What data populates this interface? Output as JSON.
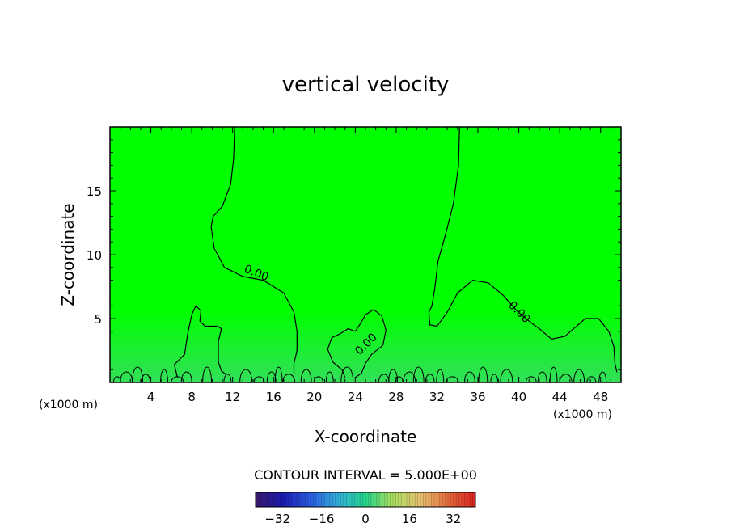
{
  "chart_data": {
    "type": "contour",
    "title": "vertical velocity",
    "xlabel": "X-coordinate",
    "ylabel": "Z-coordinate",
    "x_unit_left": "(x1000 m)",
    "x_unit_right": "(x1000 m)",
    "xlim": [
      0,
      50
    ],
    "ylim": [
      0,
      20
    ],
    "x_ticks": [
      4,
      8,
      12,
      16,
      20,
      24,
      28,
      32,
      36,
      40,
      44,
      48
    ],
    "y_ticks": [
      5,
      10,
      15
    ],
    "contour_interval_text": "CONTOUR INTERVAL = 5.000E+00",
    "contour_label": "0.00",
    "colorbar": {
      "range": [
        -40,
        40
      ],
      "ticks": [
        -32,
        -16,
        0,
        16,
        32
      ],
      "low_color": "#3b1a6b",
      "high_color": "#d92020"
    },
    "field_color": "#00ff00",
    "zero_contours": [
      {
        "name": "left-plume",
        "points": [
          [
            12.2,
            20
          ],
          [
            12.1,
            17.5
          ],
          [
            11.8,
            15.5
          ],
          [
            11,
            13.8
          ],
          [
            10.1,
            13
          ],
          [
            9.9,
            12.2
          ],
          [
            10.2,
            10.5
          ],
          [
            11.2,
            9
          ],
          [
            13,
            8.3
          ],
          [
            15,
            8
          ],
          [
            17,
            7
          ],
          [
            18,
            5.5
          ],
          [
            18.3,
            4
          ],
          [
            18.3,
            2.5
          ],
          [
            18,
            1.5
          ],
          [
            18,
            0.6
          ]
        ]
      },
      {
        "name": "right-plume",
        "points": [
          [
            34.2,
            20
          ],
          [
            34.1,
            17
          ],
          [
            33.6,
            14
          ],
          [
            32.8,
            11.5
          ],
          [
            32.1,
            9.5
          ],
          [
            31.8,
            7.5
          ],
          [
            31.5,
            6
          ],
          [
            31.2,
            5.5
          ],
          [
            31.3,
            4.5
          ],
          [
            32,
            4.4
          ],
          [
            33,
            5.5
          ],
          [
            34,
            7
          ],
          [
            35.5,
            8
          ],
          [
            37,
            7.8
          ],
          [
            38.5,
            6.8
          ],
          [
            39.8,
            5.6
          ],
          [
            41,
            4.8
          ],
          [
            42,
            4.2
          ],
          [
            43.2,
            3.4
          ],
          [
            44.5,
            3.6
          ],
          [
            45.5,
            4.3
          ],
          [
            46.5,
            5
          ],
          [
            47.8,
            5
          ],
          [
            48.8,
            4
          ],
          [
            49.3,
            2.8
          ],
          [
            49.4,
            1.5
          ],
          [
            49.6,
            0.8
          ]
        ]
      },
      {
        "name": "mid-blob",
        "points": [
          [
            23,
            0.4
          ],
          [
            22.7,
            1
          ],
          [
            21.8,
            1.6
          ],
          [
            21.3,
            2.6
          ],
          [
            21.7,
            3.5
          ],
          [
            22.5,
            3.8
          ],
          [
            23.3,
            4.2
          ],
          [
            24,
            4
          ],
          [
            24.5,
            4.6
          ],
          [
            25,
            5.3
          ],
          [
            25.8,
            5.7
          ],
          [
            26.6,
            5.2
          ],
          [
            27,
            4.1
          ],
          [
            26.7,
            2.9
          ],
          [
            25.6,
            2.2
          ],
          [
            25,
            1.5
          ],
          [
            24.6,
            0.7
          ],
          [
            24,
            0.4
          ]
        ]
      },
      {
        "name": "left-blob",
        "points": [
          [
            6.6,
            0.4
          ],
          [
            6.3,
            1.4
          ],
          [
            7.3,
            2.2
          ],
          [
            7.6,
            3.8
          ],
          [
            8,
            5.3
          ],
          [
            8.4,
            6
          ],
          [
            8.9,
            5.6
          ],
          [
            8.8,
            4.8
          ],
          [
            9.3,
            4.4
          ],
          [
            10,
            4.4
          ],
          [
            10.5,
            4.4
          ],
          [
            10.9,
            4.2
          ],
          [
            10.6,
            3.2
          ],
          [
            10.6,
            1.6
          ],
          [
            10.9,
            0.9
          ],
          [
            11.4,
            0.6
          ]
        ]
      }
    ],
    "contour_labels": [
      {
        "x": 14.2,
        "y": 8.3,
        "angle": 22
      },
      {
        "x": 25.3,
        "y": 2.8,
        "angle": -45
      },
      {
        "x": 39.8,
        "y": 5.3,
        "angle": 45
      }
    ],
    "small_bumps_x": [
      0.7,
      1.6,
      2.7,
      3.5,
      5.3,
      6.6,
      7.5,
      9.5,
      11.5,
      13.3,
      14.6,
      15.8,
      16.5,
      17.5,
      19.2,
      20.4,
      21.5,
      23.2,
      26.8,
      27.7,
      28.3,
      29.3,
      30.2,
      31.3,
      32.3,
      33.5,
      35.2,
      36.5,
      37.6,
      38.8,
      41.2,
      42.3,
      43.4,
      44.6,
      45.9,
      47.1,
      48.2
    ]
  }
}
